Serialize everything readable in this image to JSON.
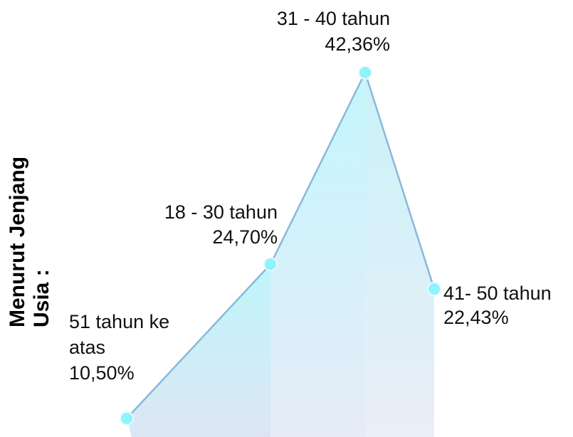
{
  "chart_data": {
    "type": "area",
    "title": "Menurut Jenjang Usia :",
    "categories": [
      "51 tahun ke atas",
      "18 - 30 tahun",
      "31 - 40 tahun",
      "41- 50 tahun"
    ],
    "values": [
      10.5,
      24.7,
      42.36,
      22.43
    ],
    "value_labels": [
      "10,50%",
      "24,70%",
      "42,36%",
      "22,43%"
    ],
    "color": "#8ff3fb"
  }
}
